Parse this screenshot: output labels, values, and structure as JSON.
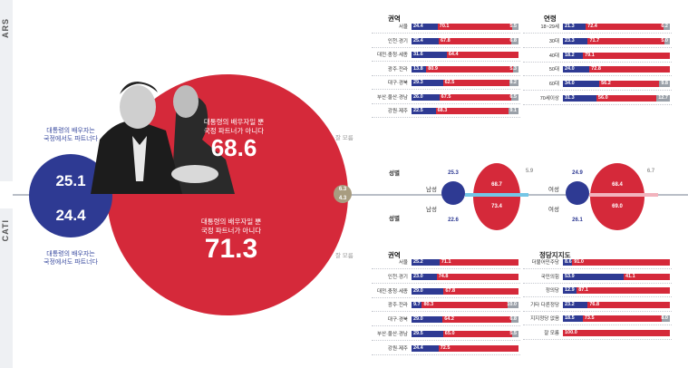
{
  "sides": {
    "top": "ARS",
    "bottom": "CATI"
  },
  "main": {
    "ars": {
      "left_caption": "대통령의 배우자는\n국정에서도 파트너다",
      "left_value": "25.1",
      "right_caption": "대통령의 배우자일 뿐\n국정 파트너가 아니다",
      "right_value": "68.6",
      "other_value": "6.3",
      "other_label": "잘 모름"
    },
    "cati": {
      "left_caption": "대통령의 배우자는\n국정에서도 파트너다",
      "left_value": "24.4",
      "right_caption": "대통령의 배우자일 뿐\n국정 파트너가 아니다",
      "right_value": "71.3",
      "other_value": "4.3",
      "other_label": "잘 모름"
    }
  },
  "gender": {
    "title": "성별",
    "ars": {
      "male": {
        "label": "남성",
        "blue": "25.3",
        "red": "68.7",
        "gray": "5.9"
      },
      "female": {
        "label": "여성",
        "blue": "24.9",
        "red": "68.4",
        "gray": "6.7"
      }
    },
    "cati": {
      "male": {
        "label": "남성",
        "blue": "22.6",
        "red": "73.4"
      },
      "female": {
        "label": "여성",
        "blue": "26.1",
        "red": "69.0"
      }
    }
  },
  "chart_data": [
    {
      "type": "bar",
      "title": "권역",
      "categories": [
        "서울",
        "인천·경기",
        "대전·충청·세종",
        "광주·전라",
        "대구·경북",
        "부산·울산·경남",
        "강원·제주"
      ],
      "series": [
        {
          "values": [
            24.4,
            25.4,
            31.6,
            13.8,
            29.3,
            26.0,
            22.5
          ]
        },
        {
          "values": [
            70.1,
            67.8,
            64.4,
            80.9,
            62.5,
            67.5,
            68.3
          ]
        },
        {
          "values": [
            5.5,
            6.8,
            null,
            5.3,
            8.2,
            6.5,
            9.1
          ]
        }
      ]
    },
    {
      "type": "bar",
      "title": "연령",
      "categories": [
        "18~29세",
        "30대",
        "40대",
        "50대",
        "60대",
        "70세이상"
      ],
      "series": [
        {
          "values": [
            21.3,
            23.3,
            18.2,
            24.0,
            34.0,
            31.3
          ]
        },
        {
          "values": [
            72.4,
            71.7,
            79.1,
            72.8,
            56.2,
            56.0
          ]
        },
        {
          "values": [
            6.2,
            5.0,
            null,
            null,
            9.8,
            12.7
          ]
        }
      ]
    },
    {
      "type": "bar",
      "title": "권역",
      "categories": [
        "서울",
        "인천·경기",
        "대전·충청·세종",
        "광주·전라",
        "대구·경북",
        "부산·울산·경남",
        "강원·제주"
      ],
      "series": [
        {
          "values": [
            25.2,
            23.0,
            29.0,
            9.7,
            29.0,
            29.5,
            24.4
          ]
        },
        {
          "values": [
            71.1,
            74.8,
            67.8,
            80.3,
            64.2,
            65.0,
            72.5
          ]
        },
        {
          "values": [
            null,
            null,
            null,
            10.0,
            6.8,
            5.5,
            null
          ]
        }
      ]
    },
    {
      "type": "bar",
      "title": "정당지지도",
      "categories": [
        "더불어민주당",
        "국민의힘",
        "정의당",
        "기타 다른정당",
        "지지정당 없음",
        "잘 모름"
      ],
      "series": [
        {
          "values": [
            8.6,
            53.9,
            12.9,
            23.2,
            18.5,
            null
          ]
        },
        {
          "values": [
            91.0,
            41.1,
            87.1,
            76.8,
            73.5,
            100.0
          ]
        },
        {
          "values": [
            null,
            null,
            null,
            null,
            8.0,
            null
          ]
        }
      ]
    }
  ],
  "colors": {
    "blue": "#2e3a93",
    "red": "#d5293a",
    "gray": "#9aa0a8",
    "tan": "#a89c80"
  }
}
